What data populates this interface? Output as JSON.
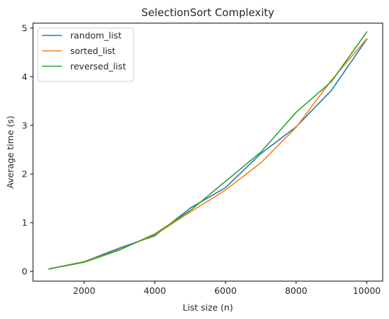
{
  "chart_data": {
    "type": "line",
    "title": "SelectionSort Complexity",
    "xlabel": "List size (n)",
    "ylabel": "Average time (s)",
    "x": [
      1000,
      2000,
      3000,
      4000,
      5000,
      6000,
      7000,
      8000,
      9000,
      10000
    ],
    "xlim": [
      550,
      10450
    ],
    "ylim": [
      -0.2,
      5.1
    ],
    "xticks": [
      2000,
      4000,
      6000,
      8000,
      10000
    ],
    "xtick_labels": [
      "2000",
      "4000",
      "6000",
      "8000",
      "10000"
    ],
    "yticks": [
      0,
      1,
      2,
      3,
      4,
      5
    ],
    "ytick_labels": [
      "0",
      "1",
      "2",
      "3",
      "4",
      "5"
    ],
    "grid": false,
    "legend_position": "upper-left",
    "series": [
      {
        "name": "random_list",
        "color": "#1f77b4",
        "values": [
          0.05,
          0.2,
          0.48,
          0.73,
          1.3,
          1.72,
          2.42,
          2.97,
          3.72,
          4.77
        ]
      },
      {
        "name": "sorted_list",
        "color": "#ff7f0e",
        "values": [
          0.05,
          0.2,
          0.45,
          0.75,
          1.22,
          1.67,
          2.23,
          2.96,
          3.93,
          4.78
        ]
      },
      {
        "name": "reversed_list",
        "color": "#2ca02c",
        "values": [
          0.05,
          0.19,
          0.44,
          0.77,
          1.25,
          1.85,
          2.45,
          3.27,
          3.9,
          4.92
        ]
      }
    ]
  }
}
